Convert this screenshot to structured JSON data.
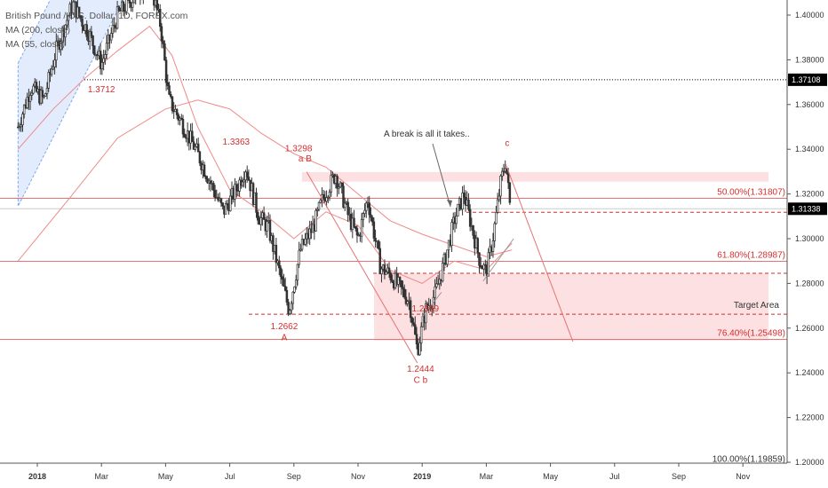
{
  "legend": {
    "symbol": "British Pound / U.S. Dollar, 1D, FOREX.com",
    "ma200": "MA (200, close)",
    "ma55": "MA (55, close)"
  },
  "colors": {
    "candle": "#333333",
    "fib_line": "#e57373",
    "zone_fill": "rgba(244,143,150,0.28)",
    "ma": "#ef8a8a",
    "channel": "rgba(100,149,237,0.18)",
    "annotation": "#d32f2f",
    "badge": "#000000"
  },
  "chart_data": {
    "type": "candlestick",
    "y_axis": {
      "min": 1.195,
      "max": 1.407,
      "ticks": [
        "1.40000",
        "1.38000",
        "1.36000",
        "1.34000",
        "1.32000",
        "1.30000",
        "1.28000",
        "1.26000",
        "1.24000",
        "1.22000",
        "1.20000"
      ],
      "tick_values": [
        1.4,
        1.38,
        1.36,
        1.34,
        1.32,
        1.3,
        1.28,
        1.26,
        1.24,
        1.22,
        1.2
      ]
    },
    "x_axis": {
      "labels": [
        "2018",
        "Mar",
        "May",
        "Jul",
        "Sep",
        "Nov",
        "2019",
        "Mar",
        "May",
        "Jul",
        "Sep",
        "Nov"
      ],
      "months": [
        0,
        2,
        4,
        6,
        8,
        10,
        12,
        14,
        16,
        18,
        20,
        22
      ]
    },
    "price_path": [
      {
        "t": -0.6,
        "p": 1.35
      },
      {
        "t": -0.2,
        "p": 1.368
      },
      {
        "t": 0.2,
        "p": 1.362
      },
      {
        "t": 0.6,
        "p": 1.385
      },
      {
        "t": 1.1,
        "p": 1.405
      },
      {
        "t": 1.6,
        "p": 1.392
      },
      {
        "t": 2.0,
        "p": 1.378
      },
      {
        "t": 2.5,
        "p": 1.4
      },
      {
        "t": 3.0,
        "p": 1.408
      },
      {
        "t": 3.5,
        "p": 1.415
      },
      {
        "t": 3.85,
        "p": 1.395
      },
      {
        "t": 4.1,
        "p": 1.362
      },
      {
        "t": 4.5,
        "p": 1.352
      },
      {
        "t": 5.0,
        "p": 1.338
      },
      {
        "t": 5.4,
        "p": 1.325
      },
      {
        "t": 5.8,
        "p": 1.312
      },
      {
        "t": 6.2,
        "p": 1.322
      },
      {
        "t": 6.5,
        "p": 1.332
      },
      {
        "t": 6.9,
        "p": 1.31
      },
      {
        "t": 7.2,
        "p": 1.305
      },
      {
        "t": 7.6,
        "p": 1.282
      },
      {
        "t": 7.85,
        "p": 1.268
      },
      {
        "t": 8.2,
        "p": 1.295
      },
      {
        "t": 8.6,
        "p": 1.305
      },
      {
        "t": 8.9,
        "p": 1.318
      },
      {
        "t": 9.3,
        "p": 1.329
      },
      {
        "t": 9.7,
        "p": 1.31
      },
      {
        "t": 10.0,
        "p": 1.3
      },
      {
        "t": 10.3,
        "p": 1.318
      },
      {
        "t": 10.7,
        "p": 1.287
      },
      {
        "t": 11.0,
        "p": 1.284
      },
      {
        "t": 11.3,
        "p": 1.278
      },
      {
        "t": 11.6,
        "p": 1.272
      },
      {
        "t": 11.85,
        "p": 1.25
      },
      {
        "t": 12.1,
        "p": 1.268
      },
      {
        "t": 12.4,
        "p": 1.275
      },
      {
        "t": 12.7,
        "p": 1.29
      },
      {
        "t": 13.0,
        "p": 1.308
      },
      {
        "t": 13.3,
        "p": 1.32
      },
      {
        "t": 13.55,
        "p": 1.305
      },
      {
        "t": 13.8,
        "p": 1.29
      },
      {
        "t": 14.0,
        "p": 1.285
      },
      {
        "t": 14.2,
        "p": 1.3
      },
      {
        "t": 14.45,
        "p": 1.325
      },
      {
        "t": 14.6,
        "p": 1.335
      },
      {
        "t": 14.75,
        "p": 1.313
      }
    ],
    "horizontal_levels": [
      {
        "value": 1.37108,
        "style": "dotted",
        "color": "#000000",
        "badge": "1.37108"
      },
      {
        "value": 1.31807,
        "style": "solid",
        "color": "#e57373",
        "label": "50.00%(1.31807)"
      },
      {
        "value": 1.31338,
        "style": "solid-grey",
        "badge": "1.31338"
      },
      {
        "value": 1.3118,
        "style": "dashed",
        "color": "#d32f2f"
      },
      {
        "value": 1.28987,
        "style": "solid",
        "color": "#e57373",
        "label": "61.80%(1.28987)"
      },
      {
        "value": 1.2845,
        "style": "dashed",
        "color": "#d32f2f"
      },
      {
        "value": 1.2662,
        "style": "dashed",
        "color": "#d32f2f"
      },
      {
        "value": 1.25498,
        "style": "solid",
        "color": "#e57373",
        "label": "76.40%(1.25498)"
      },
      {
        "value": 1.19859,
        "style": "none",
        "label": "100.00%(1.19859)"
      }
    ],
    "zones": [
      {
        "t0": 8.25,
        "t1": 22.8,
        "p0": 1.3255,
        "p1": 1.3298
      },
      {
        "t0": 10.5,
        "t1": 22.8,
        "p0": 1.2545,
        "p1": 1.2845
      }
    ],
    "target_label": "Target Area",
    "annotation_text": "A break is all it takes..",
    "wave_labels": [
      {
        "t": 2.0,
        "p": 1.3655,
        "text": "1.3712"
      },
      {
        "t": 6.2,
        "p": 1.342,
        "text": "1.3363"
      },
      {
        "t": 8.15,
        "p": 1.339,
        "text": "1.3298"
      },
      {
        "t": 7.7,
        "p": 1.2595,
        "text": "1.2662"
      },
      {
        "t": 7.7,
        "p": 1.2545,
        "text": "A"
      },
      {
        "t": 12.1,
        "p": 1.2675,
        "text": "1.2669"
      },
      {
        "t": 11.95,
        "p": 1.2405,
        "text": "1.2444"
      },
      {
        "t": 11.95,
        "p": 1.2355,
        "text": "C  b"
      },
      {
        "t": 14.65,
        "p": 1.3415,
        "text": "c"
      },
      {
        "t": 8.35,
        "p": 1.3345,
        "text": "a  B"
      }
    ],
    "ma200_path": [
      {
        "t": -0.6,
        "p": 1.29
      },
      {
        "t": 1.0,
        "p": 1.318
      },
      {
        "t": 2.5,
        "p": 1.345
      },
      {
        "t": 4.0,
        "p": 1.358
      },
      {
        "t": 5.0,
        "p": 1.362
      },
      {
        "t": 6.0,
        "p": 1.358
      },
      {
        "t": 7.0,
        "p": 1.347
      },
      {
        "t": 8.0,
        "p": 1.338
      },
      {
        "t": 9.0,
        "p": 1.332
      },
      {
        "t": 10.0,
        "p": 1.32
      },
      {
        "t": 11.0,
        "p": 1.308
      },
      {
        "t": 12.0,
        "p": 1.302
      },
      {
        "t": 13.0,
        "p": 1.297
      },
      {
        "t": 14.0,
        "p": 1.292
      },
      {
        "t": 14.8,
        "p": 1.295
      }
    ],
    "ma55_path": [
      {
        "t": -0.6,
        "p": 1.34
      },
      {
        "t": 0.5,
        "p": 1.358
      },
      {
        "t": 1.5,
        "p": 1.372
      },
      {
        "t": 2.5,
        "p": 1.384
      },
      {
        "t": 3.5,
        "p": 1.395
      },
      {
        "t": 4.2,
        "p": 1.382
      },
      {
        "t": 5.0,
        "p": 1.35
      },
      {
        "t": 6.0,
        "p": 1.322
      },
      {
        "t": 7.0,
        "p": 1.312
      },
      {
        "t": 8.0,
        "p": 1.3
      },
      {
        "t": 9.0,
        "p": 1.312
      },
      {
        "t": 10.0,
        "p": 1.306
      },
      {
        "t": 11.0,
        "p": 1.286
      },
      {
        "t": 12.0,
        "p": 1.28
      },
      {
        "t": 13.0,
        "p": 1.29
      },
      {
        "t": 14.0,
        "p": 1.286
      },
      {
        "t": 14.8,
        "p": 1.298
      }
    ],
    "trendlines": [
      {
        "t0": 8.4,
        "p0": 1.3298,
        "t1": 11.85,
        "p1": 1.2444
      },
      {
        "t0": 14.6,
        "p0": 1.3335,
        "t1": 16.7,
        "p1": 1.254
      },
      {
        "t0": 13.9,
        "p0": 1.281,
        "t1": 14.85,
        "p1": 1.3
      },
      {
        "t0": 12.0,
        "p0": 1.265,
        "t1": 12.6,
        "p1": 1.276
      }
    ],
    "channel": {
      "upper": [
        {
          "t": -0.6,
          "p": 1.3785
        },
        {
          "t": 5.0,
          "p": 1.5365
        }
      ],
      "lower": [
        {
          "t": -0.6,
          "p": 1.3145
        },
        {
          "t": 5.0,
          "p": 1.4725
        }
      ]
    }
  }
}
